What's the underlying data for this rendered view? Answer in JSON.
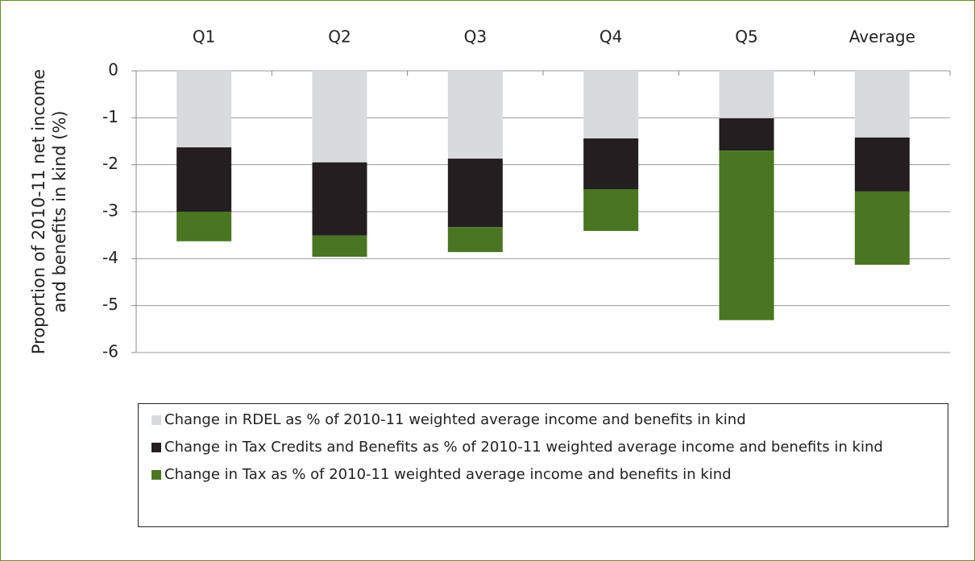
{
  "chart_data": {
    "type": "stacked_bar",
    "y_label": "Proportion of 2010-11 net income and benefits in kind (%)",
    "categories": [
      "Q1",
      "Q2",
      "Q3",
      "Q4",
      "Q5",
      "Average"
    ],
    "series": [
      {
        "name": "Change in RDEL as % of 2010-11 weighted average income and benefits in kind",
        "color": "#d9dadb",
        "values": [
          -1.63,
          -1.95,
          -1.87,
          -1.44,
          -1.01,
          -1.42
        ]
      },
      {
        "name": "Change in Tax Credits and Benefits as % of 2010-11 weighted average income and benefits in kind",
        "color": "#231f20",
        "values": [
          -1.37,
          -1.56,
          -1.46,
          -1.08,
          -0.69,
          -1.15
        ]
      },
      {
        "name": "Change in Tax as % of 2010-11 weighted average income and benefits in kind",
        "color": "#4a7521",
        "values": [
          -0.63,
          -0.45,
          -0.53,
          -0.89,
          -3.61,
          -1.56
        ]
      }
    ],
    "ylim": [
      -6,
      0
    ],
    "yticks": [
      0,
      -1,
      -2,
      -3,
      -4,
      -5,
      -6
    ],
    "grid": true
  }
}
